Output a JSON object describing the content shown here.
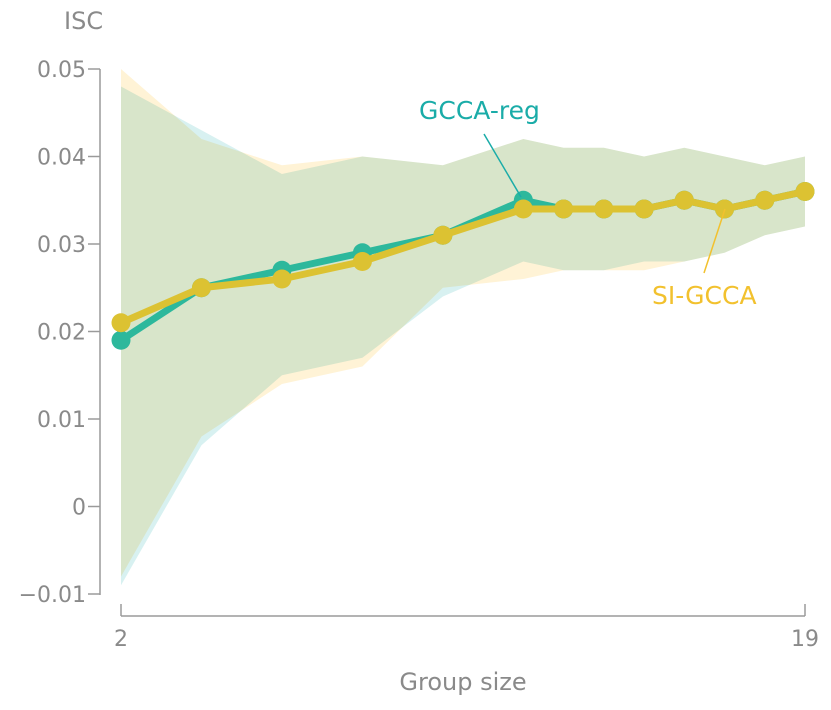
{
  "chart_data": {
    "type": "line",
    "xlabel": "Group size",
    "ylabel": "ISC",
    "xlim": [
      2,
      19
    ],
    "ylim": [
      -0.01,
      0.05
    ],
    "x_ticks": [
      "2",
      "19"
    ],
    "y_ticks": [
      "−0.01",
      "0",
      "0.01",
      "0.02",
      "0.03",
      "0.04",
      "0.05"
    ],
    "y_tick_values": [
      -0.01,
      0,
      0.01,
      0.02,
      0.03,
      0.04,
      0.05
    ],
    "x_tick_values": [
      2,
      19
    ],
    "grid": false,
    "x": [
      2,
      4,
      6,
      8,
      10,
      12,
      13,
      14,
      15,
      16,
      17,
      18,
      19
    ],
    "series": [
      {
        "name": "GCCA-reg",
        "color": "#2db89c",
        "label_color": "#1aaca8",
        "band_color": "#d8f1f1",
        "values": [
          0.019,
          0.025,
          0.027,
          0.029,
          0.031,
          0.035,
          0.034,
          0.034,
          0.034,
          0.035,
          0.034,
          0.035,
          0.036
        ],
        "upper": [
          0.048,
          0.043,
          0.038,
          0.04,
          0.039,
          0.042,
          0.041,
          0.041,
          0.04,
          0.041,
          0.04,
          0.039,
          0.04
        ],
        "lower": [
          -0.009,
          0.007,
          0.015,
          0.017,
          0.024,
          0.028,
          0.027,
          0.027,
          0.028,
          0.028,
          0.029,
          0.031,
          0.032
        ]
      },
      {
        "name": "SI-GCCA",
        "color": "#dcc232",
        "label_color": "#f2c12e",
        "band_color": "#fff3d6",
        "values": [
          0.021,
          0.025,
          0.026,
          0.028,
          0.031,
          0.034,
          0.034,
          0.034,
          0.034,
          0.035,
          0.034,
          0.035,
          0.036
        ],
        "upper": [
          0.05,
          0.042,
          0.039,
          0.04,
          0.039,
          0.042,
          0.041,
          0.041,
          0.04,
          0.041,
          0.04,
          0.039,
          0.04
        ],
        "lower": [
          -0.008,
          0.008,
          0.014,
          0.016,
          0.025,
          0.026,
          0.027,
          0.027,
          0.027,
          0.028,
          0.029,
          0.031,
          0.032
        ]
      }
    ]
  }
}
